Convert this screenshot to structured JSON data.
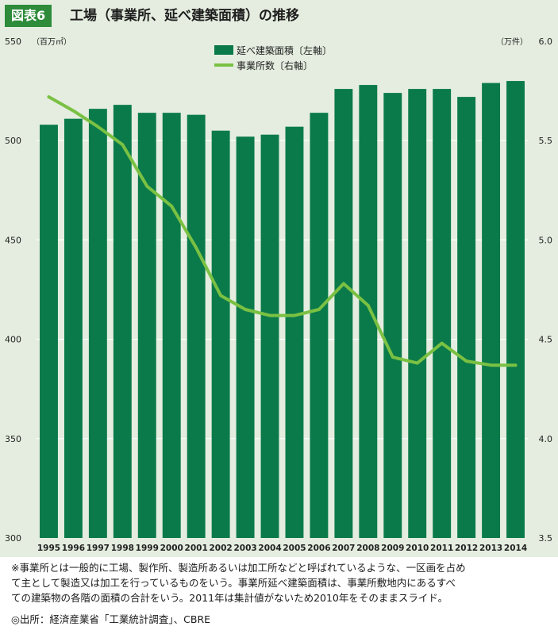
{
  "header": {
    "badge": "図表6",
    "title": "工場（事業所、延べ建築面積）の推移"
  },
  "chart_data": {
    "type": "bar+line",
    "categories": [
      "1995",
      "1996",
      "1997",
      "1998",
      "1999",
      "2000",
      "2001",
      "2002",
      "2003",
      "2004",
      "2005",
      "2006",
      "2007",
      "2008",
      "2009",
      "2010",
      "2011",
      "2012",
      "2013",
      "2014"
    ],
    "series": [
      {
        "name": "延べ建築面積〔左軸〕",
        "type": "bar",
        "axis": "left",
        "values": [
          508,
          511,
          516,
          518,
          514,
          514,
          513,
          505,
          502,
          503,
          507,
          514,
          526,
          528,
          524,
          526,
          526,
          522,
          529,
          530
        ]
      },
      {
        "name": "事業所数〔右軸〕",
        "type": "line",
        "axis": "right",
        "values": [
          5.72,
          5.65,
          5.57,
          5.48,
          5.27,
          5.17,
          4.96,
          4.72,
          4.65,
          4.62,
          4.62,
          4.65,
          4.78,
          4.67,
          4.41,
          4.38,
          4.48,
          4.39,
          4.37,
          4.37
        ]
      }
    ],
    "left_axis": {
      "unit": "（百万㎡）",
      "ylim": [
        300,
        550
      ],
      "ticks": [
        "300",
        "350",
        "400",
        "450",
        "500",
        "550"
      ]
    },
    "right_axis": {
      "unit": "（万件）",
      "ylim": [
        3.5,
        6.0
      ],
      "ticks": [
        "3.5",
        "4.0",
        "4.5",
        "5.0",
        "5.5",
        "6.0"
      ]
    },
    "grid": true,
    "legend_position": "top-center",
    "colors": {
      "bar": "#0b7a4a",
      "line": "#7ac143",
      "background": "#e4eddf",
      "grid": "#ffffff"
    }
  },
  "note": {
    "line1": "※事業所とは一般的に工場、製作所、製造所あるいは加工所などと呼ばれているような、一区画を占め",
    "line2": "て主として製造又は加工を行っているものをいう。事業所延べ建築面積は、事業所敷地内にあるすべ",
    "line3": "ての建築物の各階の面積の合計をいう。2011年は集計値がないため2010年をそのままスライド。"
  },
  "source": "◎出所：経済産業省「工業統計調査」、CBRE"
}
